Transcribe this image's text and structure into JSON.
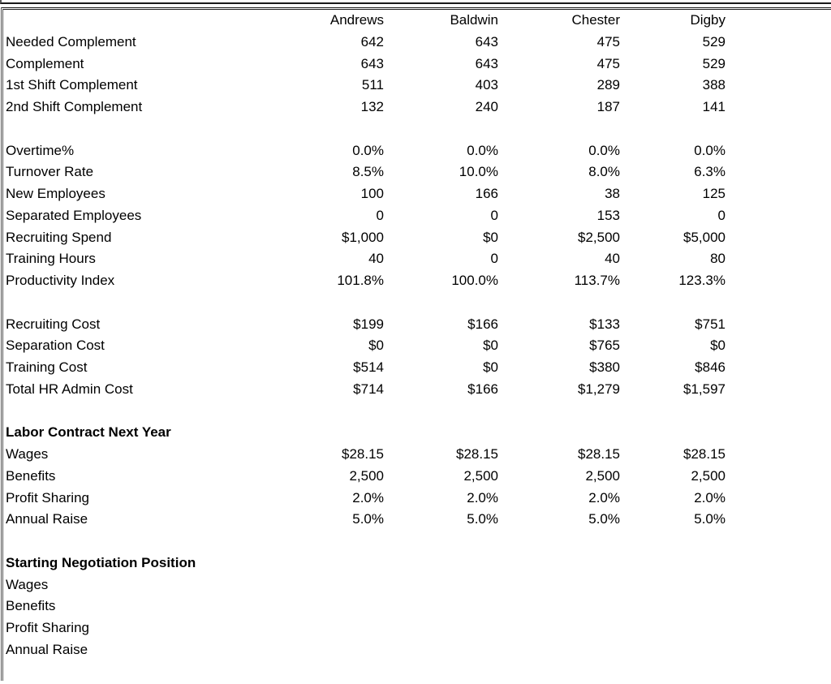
{
  "colors": {
    "text": "#000000",
    "background": "#ffffff",
    "border_dark": "#1a1a1a",
    "border_gray": "#555555"
  },
  "table": {
    "columns": [
      "Andrews",
      "Baldwin",
      "Chester",
      "Digby"
    ],
    "rows": [
      {
        "type": "data",
        "label": "Needed Complement",
        "values": [
          "642",
          "643",
          "475",
          "529"
        ]
      },
      {
        "type": "data",
        "label": "Complement",
        "values": [
          "643",
          "643",
          "475",
          "529"
        ]
      },
      {
        "type": "data",
        "label": "1st Shift Complement",
        "values": [
          "511",
          "403",
          "289",
          "388"
        ]
      },
      {
        "type": "data",
        "label": "2nd Shift Complement",
        "values": [
          "132",
          "240",
          "187",
          "141"
        ]
      },
      {
        "type": "spacer"
      },
      {
        "type": "data",
        "label": "Overtime%",
        "values": [
          "0.0%",
          "0.0%",
          "0.0%",
          "0.0%"
        ]
      },
      {
        "type": "data",
        "label": "Turnover Rate",
        "values": [
          "8.5%",
          "10.0%",
          "8.0%",
          "6.3%"
        ]
      },
      {
        "type": "data",
        "label": "New Employees",
        "values": [
          "100",
          "166",
          "38",
          "125"
        ]
      },
      {
        "type": "data",
        "label": "Separated Employees",
        "values": [
          "0",
          "0",
          "153",
          "0"
        ]
      },
      {
        "type": "data",
        "label": "Recruiting Spend",
        "values": [
          "$1,000",
          "$0",
          "$2,500",
          "$5,000"
        ]
      },
      {
        "type": "data",
        "label": "Training Hours",
        "values": [
          "40",
          "0",
          "40",
          "80"
        ]
      },
      {
        "type": "data",
        "label": "Productivity Index",
        "values": [
          "101.8%",
          "100.0%",
          "113.7%",
          "123.3%"
        ]
      },
      {
        "type": "spacer"
      },
      {
        "type": "data",
        "label": "Recruiting Cost",
        "values": [
          "$199",
          "$166",
          "$133",
          "$751"
        ]
      },
      {
        "type": "data",
        "label": "Separation Cost",
        "values": [
          "$0",
          "$0",
          "$765",
          "$0"
        ]
      },
      {
        "type": "data",
        "label": "Training Cost",
        "values": [
          "$514",
          "$0",
          "$380",
          "$846"
        ]
      },
      {
        "type": "data",
        "label": "Total HR Admin Cost",
        "values": [
          "$714",
          "$166",
          "$1,279",
          "$1,597"
        ]
      },
      {
        "type": "spacer"
      },
      {
        "type": "section",
        "label": "Labor Contract Next Year"
      },
      {
        "type": "data",
        "label": "Wages",
        "values": [
          "$28.15",
          "$28.15",
          "$28.15",
          "$28.15"
        ]
      },
      {
        "type": "data",
        "label": "Benefits",
        "values": [
          "2,500",
          "2,500",
          "2,500",
          "2,500"
        ]
      },
      {
        "type": "data",
        "label": "Profit Sharing",
        "values": [
          "2.0%",
          "2.0%",
          "2.0%",
          "2.0%"
        ]
      },
      {
        "type": "data",
        "label": "Annual Raise",
        "values": [
          "5.0%",
          "5.0%",
          "5.0%",
          "5.0%"
        ]
      },
      {
        "type": "spacer"
      },
      {
        "type": "section",
        "label": "Starting Negotiation Position"
      },
      {
        "type": "data",
        "label": "Wages",
        "values": [
          "",
          "",
          "",
          ""
        ]
      },
      {
        "type": "data",
        "label": "Benefits",
        "values": [
          "",
          "",
          "",
          ""
        ]
      },
      {
        "type": "data",
        "label": "Profit Sharing",
        "values": [
          "",
          "",
          "",
          ""
        ]
      },
      {
        "type": "data",
        "label": "Annual Raise",
        "values": [
          "",
          "",
          "",
          ""
        ]
      }
    ]
  }
}
